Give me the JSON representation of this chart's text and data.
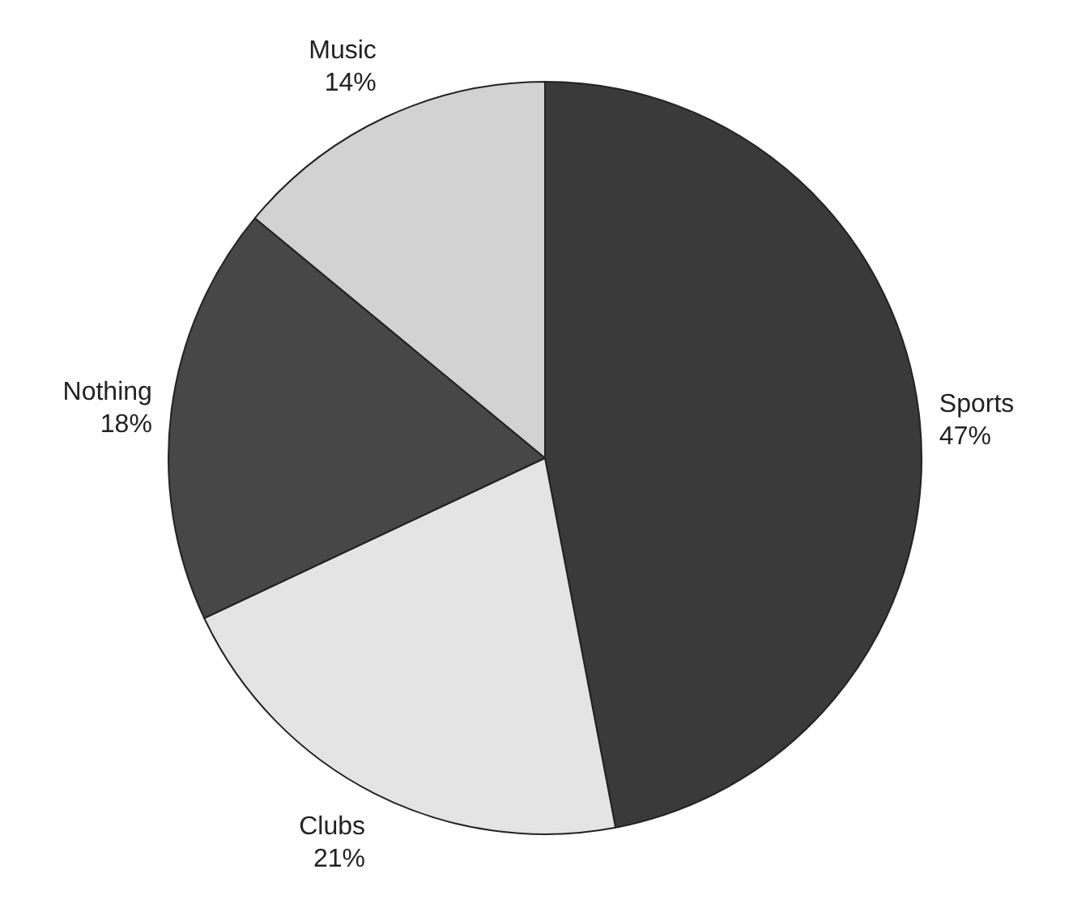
{
  "chart_data": {
    "type": "pie",
    "categories": [
      "Sports",
      "Clubs",
      "Nothing",
      "Music"
    ],
    "values": [
      47,
      21,
      18,
      14
    ],
    "colors": [
      "#3a3a3a",
      "#e4e4e4",
      "#474747",
      "#d2d2d2"
    ],
    "value_labels": [
      "47%",
      "21%",
      "18%",
      "14%"
    ]
  }
}
